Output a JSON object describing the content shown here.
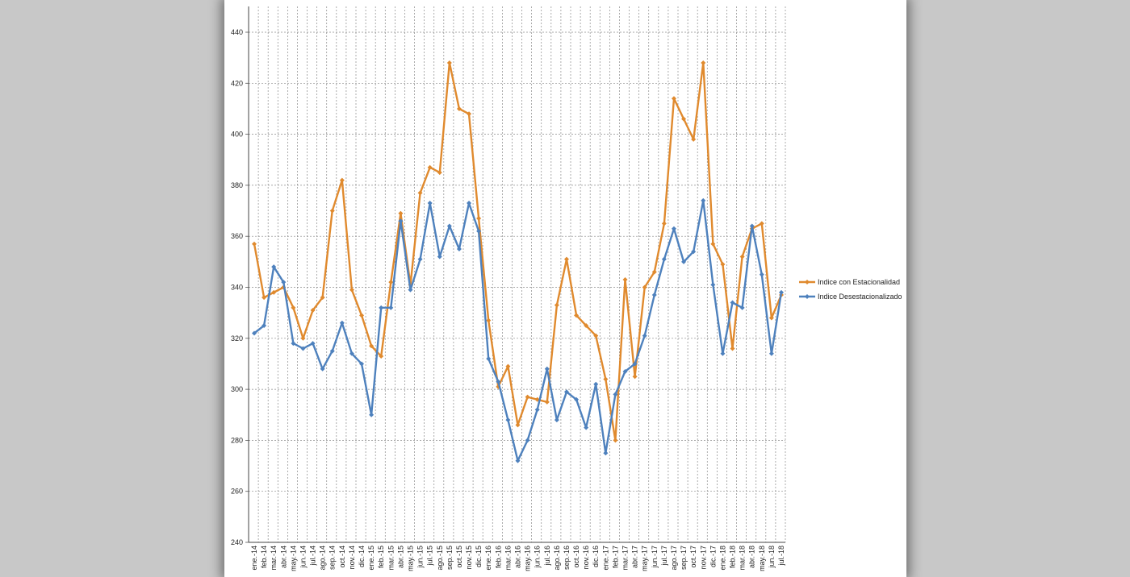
{
  "chart_data": {
    "type": "line",
    "title": "",
    "xlabel": "",
    "ylabel": "",
    "ylim": [
      240,
      440
    ],
    "yticks": [
      240,
      260,
      280,
      300,
      320,
      340,
      360,
      380,
      400,
      420,
      440
    ],
    "grid": true,
    "legend_position": "right",
    "categories": [
      "ene.-14",
      "feb.-14",
      "mar.-14",
      "abr.-14",
      "may.-14",
      "jun.-14",
      "jul.-14",
      "ago.-14",
      "sep.-14",
      "oct.-14",
      "nov.-14",
      "dic.-14",
      "ene.-15",
      "feb.-15",
      "mar.-15",
      "abr.-15",
      "may.-15",
      "jun.-15",
      "jul.-15",
      "ago.-15",
      "sep.-15",
      "oct.-15",
      "nov.-15",
      "dic.-15",
      "ene.-16",
      "feb.-16",
      "mar.-16",
      "abr.-16",
      "may.-16",
      "jun.-16",
      "jul.-16",
      "ago.-16",
      "sep.-16",
      "oct.-16",
      "nov.-16",
      "dic.-16",
      "ene.-17",
      "feb.-17",
      "mar.-17",
      "abr.-17",
      "may.-17",
      "jun.-17",
      "jul.-17",
      "ago.-17",
      "sep.-17",
      "oct.-17",
      "nov.-17",
      "dic.-17",
      "ene.-18",
      "feb.-18",
      "mar.-18",
      "abr.-18",
      "may.-18",
      "jun.-18",
      "jul.-18"
    ],
    "series": [
      {
        "name": "Indice con Estacionalidad",
        "color": "#e08a2e",
        "values": [
          357,
          336,
          338,
          340,
          332,
          320,
          331,
          336,
          370,
          382,
          339,
          329,
          317,
          313,
          342,
          369,
          341,
          377,
          387,
          385,
          428,
          410,
          408,
          367,
          327,
          301,
          309,
          286,
          297,
          296,
          295,
          333,
          351,
          329,
          325,
          321,
          304,
          280,
          343,
          305,
          340,
          346,
          365,
          414,
          406,
          398,
          428,
          357,
          349,
          316,
          352,
          363,
          365,
          328,
          337
        ]
      },
      {
        "name": "Indice Desestacionalizado",
        "color": "#4e81bd",
        "values": [
          322,
          325,
          348,
          342,
          318,
          316,
          318,
          308,
          315,
          326,
          314,
          310,
          290,
          332,
          332,
          366,
          339,
          351,
          373,
          352,
          364,
          355,
          373,
          362,
          312,
          303,
          288,
          272,
          280,
          292,
          308,
          288,
          299,
          296,
          285,
          302,
          275,
          298,
          307,
          310,
          321,
          337,
          351,
          363,
          350,
          354,
          374,
          341,
          314,
          334,
          332,
          364,
          345,
          314,
          338
        ]
      }
    ]
  }
}
